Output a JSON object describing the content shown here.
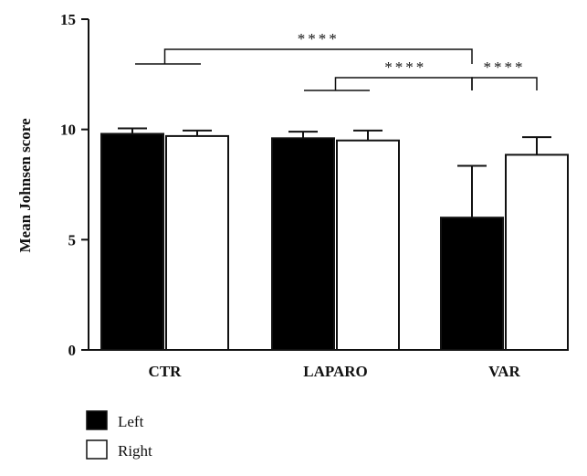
{
  "chart_data": {
    "type": "bar",
    "ylabel": "Mean Johnsen score",
    "xlabel": "",
    "ylim": [
      0,
      15
    ],
    "yticks": [
      0,
      5,
      10,
      15
    ],
    "grid": false,
    "legend_position": "bottom-left",
    "categories": [
      "CTR",
      "LAPARO",
      "VAR"
    ],
    "series": [
      {
        "name": "Left",
        "color": "#000000",
        "values": [
          9.8,
          9.6,
          6.0
        ],
        "errors": [
          0.25,
          0.3,
          2.35
        ]
      },
      {
        "name": "Right",
        "color": "#ffffff",
        "values": [
          9.7,
          9.5,
          8.85
        ],
        "errors": [
          0.25,
          0.45,
          0.8
        ]
      }
    ],
    "significance": [
      {
        "label": "****",
        "from": "CTR",
        "to": "VAR Left"
      },
      {
        "label": "****",
        "from": "LAPARO",
        "to": "VAR Left"
      },
      {
        "label": "****",
        "from": "VAR Left",
        "to": "VAR Right"
      }
    ]
  }
}
